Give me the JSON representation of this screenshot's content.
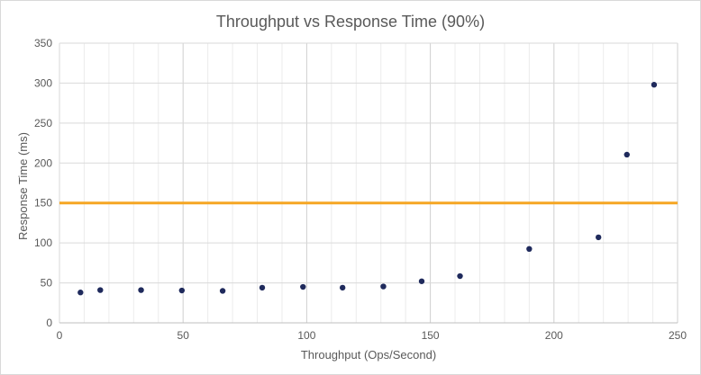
{
  "chart_data": {
    "type": "scatter",
    "title": "Throughput vs Response Time (90%)",
    "xlabel": "Throughput  (Ops/Second)",
    "ylabel": "Response Time (ms)",
    "xlim": [
      0,
      250
    ],
    "ylim": [
      0,
      350
    ],
    "x_ticks": [
      0,
      50,
      100,
      150,
      200,
      250
    ],
    "y_ticks": [
      0,
      50,
      100,
      150,
      200,
      250,
      300,
      350
    ],
    "x_minor_gridlines_step": 10,
    "grid": true,
    "legend": "none",
    "series": [
      {
        "color": "#1f2a5c",
        "points": [
          {
            "x": 8.5,
            "y": 38
          },
          {
            "x": 16.5,
            "y": 41
          },
          {
            "x": 33,
            "y": 41
          },
          {
            "x": 49.5,
            "y": 40.5
          },
          {
            "x": 66,
            "y": 40
          },
          {
            "x": 82,
            "y": 44
          },
          {
            "x": 98.5,
            "y": 45
          },
          {
            "x": 114.5,
            "y": 44
          },
          {
            "x": 131,
            "y": 45.5
          },
          {
            "x": 146.5,
            "y": 52
          },
          {
            "x": 162,
            "y": 58.5
          },
          {
            "x": 190,
            "y": 92.5
          },
          {
            "x": 218,
            "y": 107
          },
          {
            "x": 229.5,
            "y": 210.5
          },
          {
            "x": 240.5,
            "y": 298
          }
        ]
      }
    ],
    "reference_lines": [
      {
        "axis": "y",
        "value": 150,
        "color": "#f5a623"
      }
    ]
  }
}
